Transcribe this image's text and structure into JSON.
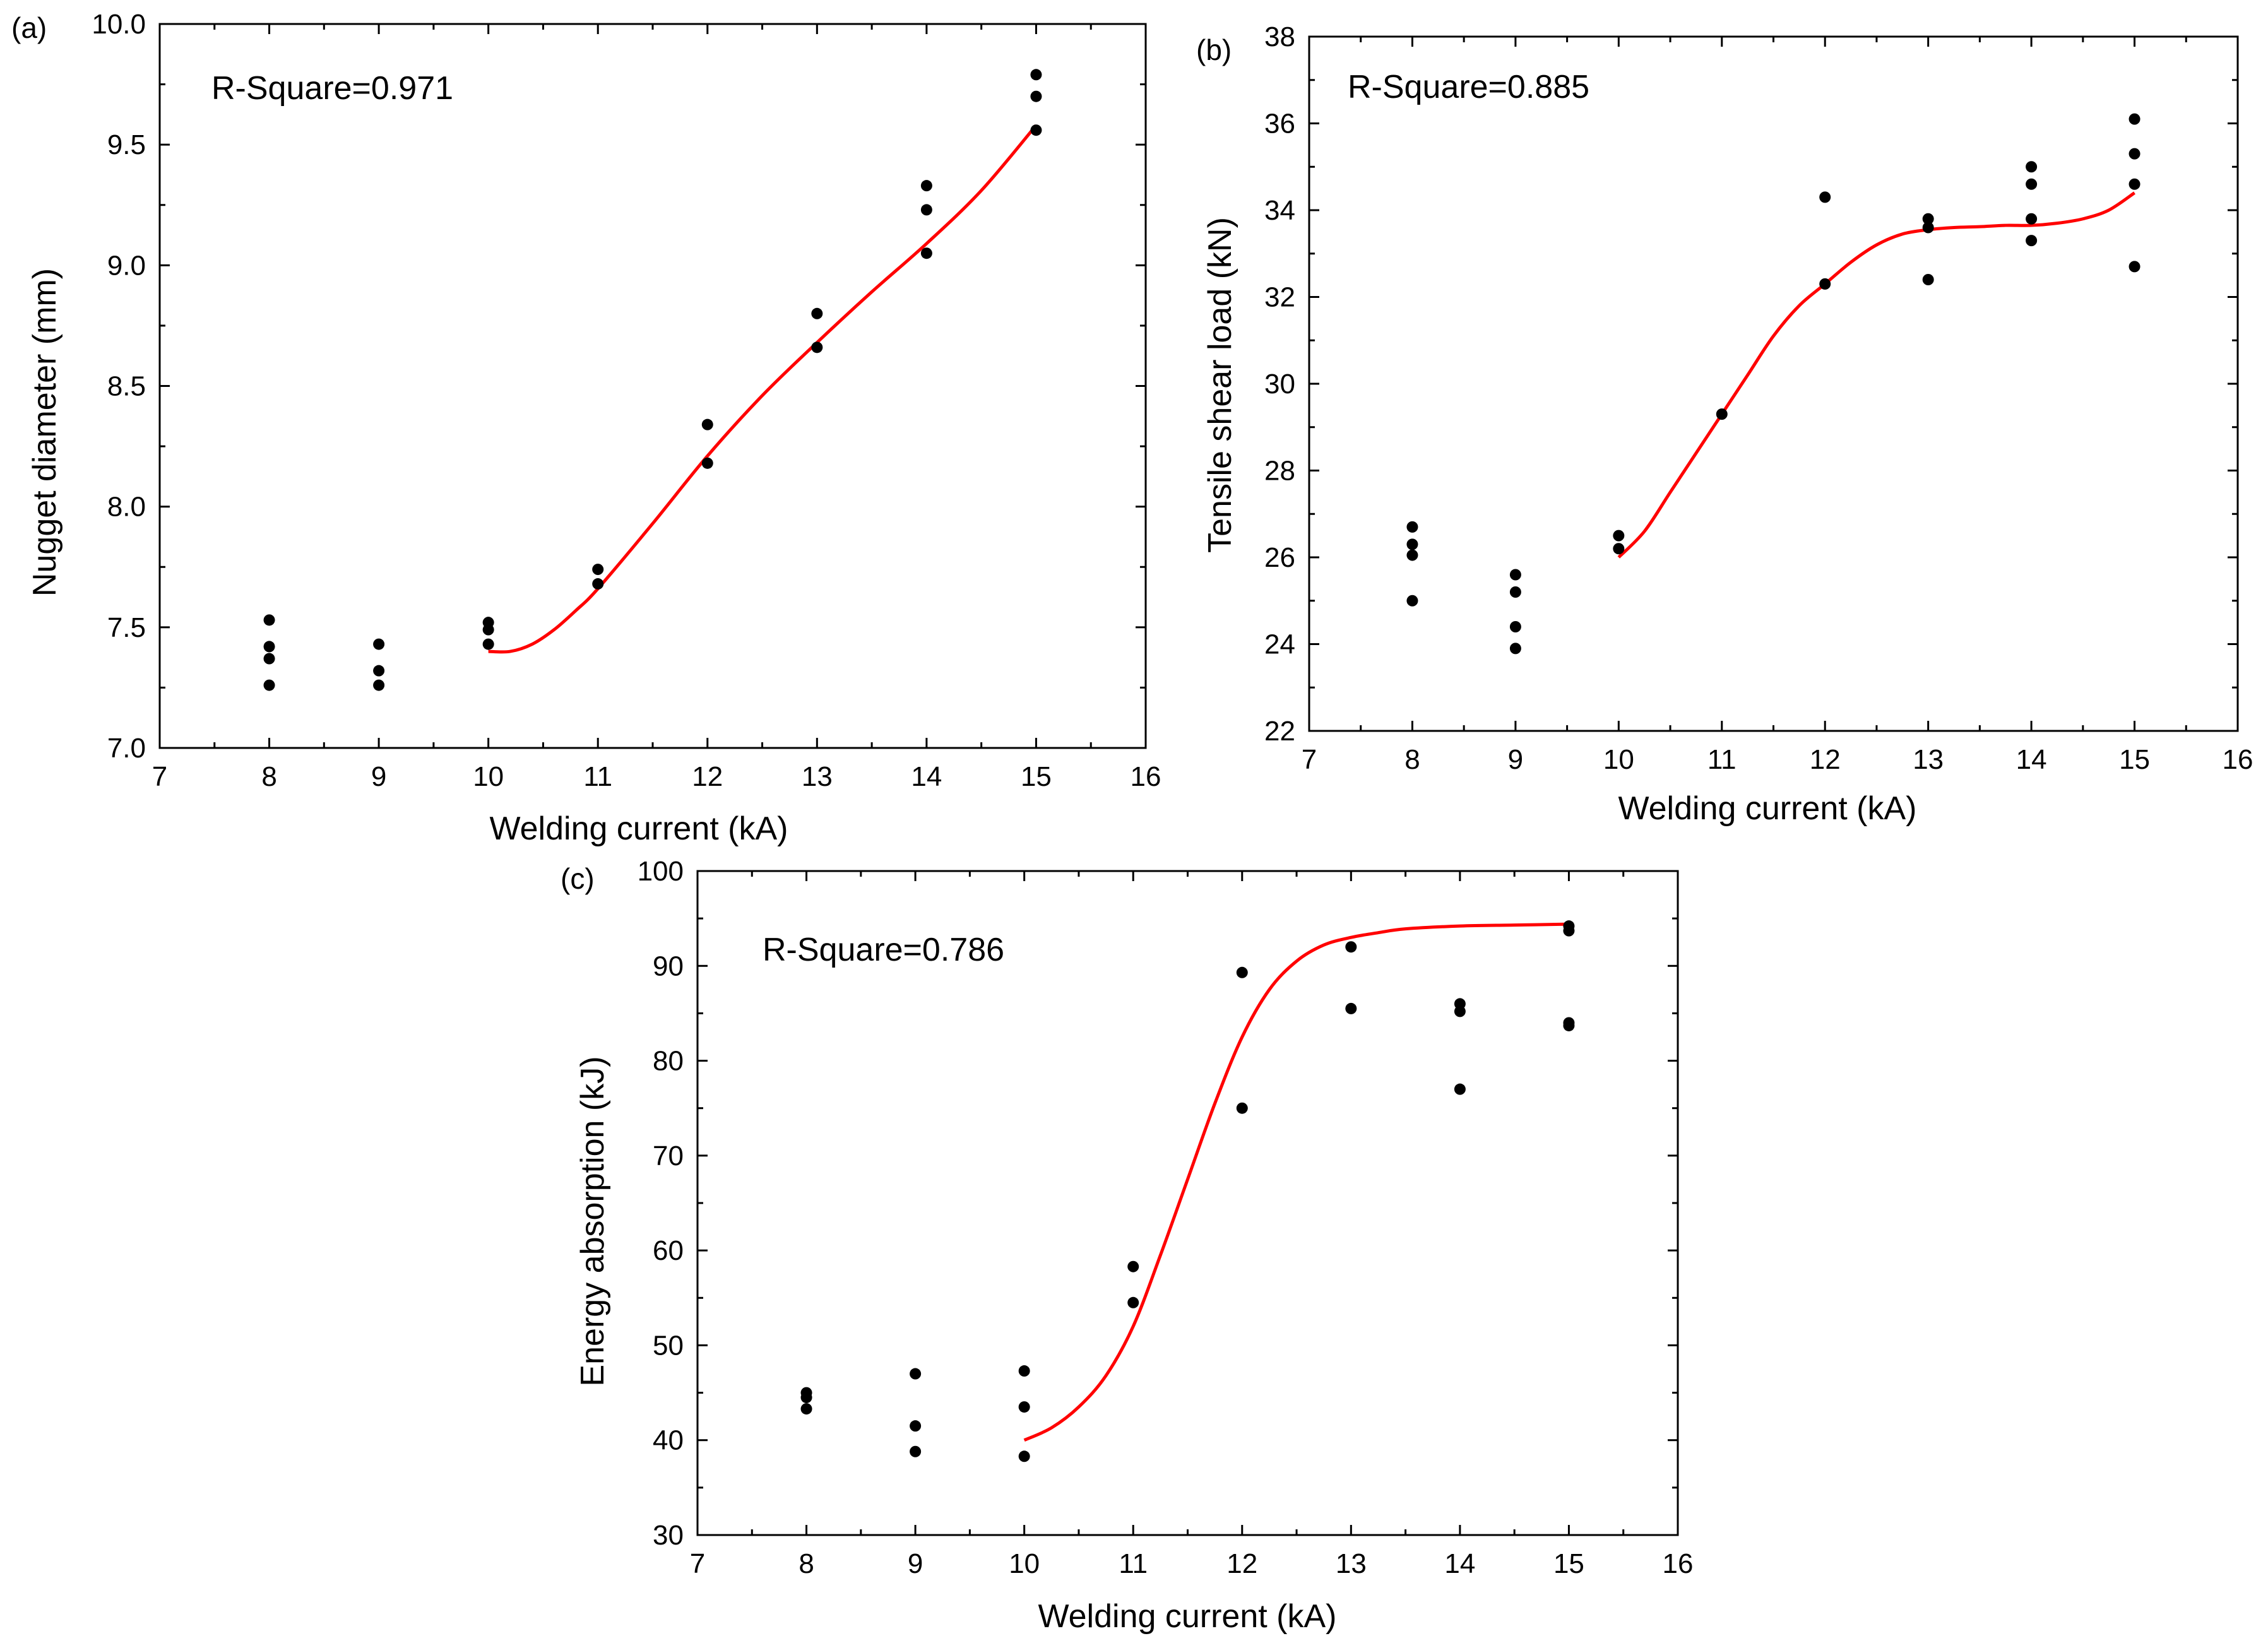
{
  "colors": {
    "points": "#000000",
    "fit": "#ff0000",
    "axes": "#000000",
    "background": "#ffffff"
  },
  "chart_data": [
    {
      "type": "scatter",
      "panel_label": "(a)",
      "annotation": "R-Square=0.971",
      "xlabel": "Welding current (kA)",
      "ylabel": "Nugget diameter (mm)",
      "xlim": [
        7,
        16
      ],
      "ylim": [
        7.0,
        10.0
      ],
      "xticks": [
        "7",
        "8",
        "9",
        "10",
        "11",
        "12",
        "13",
        "14",
        "15",
        "16"
      ],
      "yticks": [
        "7.0",
        "7.5",
        "8.0",
        "8.5",
        "9.0",
        "9.5",
        "10.0"
      ],
      "points": [
        [
          8,
          7.53
        ],
        [
          8,
          7.42
        ],
        [
          8,
          7.37
        ],
        [
          8,
          7.26
        ],
        [
          9,
          7.43
        ],
        [
          9,
          7.32
        ],
        [
          9,
          7.26
        ],
        [
          10,
          7.52
        ],
        [
          10,
          7.49
        ],
        [
          10,
          7.43
        ],
        [
          11,
          7.74
        ],
        [
          11,
          7.68
        ],
        [
          12,
          8.34
        ],
        [
          12,
          8.18
        ],
        [
          13,
          8.8
        ],
        [
          13,
          8.66
        ],
        [
          14,
          9.33
        ],
        [
          14,
          9.23
        ],
        [
          14,
          9.05
        ],
        [
          15,
          9.79
        ],
        [
          15,
          9.7
        ],
        [
          15,
          9.56
        ]
      ],
      "fit_curve": [
        [
          10.0,
          7.4
        ],
        [
          10.2,
          7.4
        ],
        [
          10.4,
          7.43
        ],
        [
          10.6,
          7.49
        ],
        [
          10.8,
          7.57
        ],
        [
          11.0,
          7.66
        ],
        [
          11.5,
          7.93
        ],
        [
          12.0,
          8.21
        ],
        [
          12.5,
          8.46
        ],
        [
          13.0,
          8.68
        ],
        [
          13.5,
          8.89
        ],
        [
          14.0,
          9.09
        ],
        [
          14.5,
          9.31
        ],
        [
          15.0,
          9.58
        ]
      ]
    },
    {
      "type": "scatter",
      "panel_label": "(b)",
      "annotation": "R-Square=0.885",
      "xlabel": "Welding current (kA)",
      "ylabel": "Tensile shear load (kN)",
      "xlim": [
        7,
        16
      ],
      "ylim": [
        22,
        38
      ],
      "xticks": [
        "7",
        "8",
        "9",
        "10",
        "11",
        "12",
        "13",
        "14",
        "15",
        "16"
      ],
      "yticks": [
        "22",
        "24",
        "26",
        "28",
        "30",
        "32",
        "34",
        "36",
        "38"
      ],
      "points": [
        [
          8,
          26.7
        ],
        [
          8,
          26.3
        ],
        [
          8,
          26.05
        ],
        [
          8,
          25.0
        ],
        [
          9,
          25.6
        ],
        [
          9,
          25.2
        ],
        [
          9,
          24.4
        ],
        [
          9,
          23.9
        ],
        [
          10,
          26.5
        ],
        [
          10,
          26.2
        ],
        [
          11,
          29.3
        ],
        [
          12,
          34.3
        ],
        [
          12,
          32.3
        ],
        [
          13,
          33.8
        ],
        [
          13,
          33.6
        ],
        [
          13,
          32.4
        ],
        [
          14,
          35.0
        ],
        [
          14,
          34.6
        ],
        [
          14,
          33.8
        ],
        [
          14,
          33.3
        ],
        [
          15,
          36.1
        ],
        [
          15,
          35.3
        ],
        [
          15,
          34.6
        ],
        [
          15,
          32.7
        ]
      ],
      "fit_curve": [
        [
          10.0,
          26.0
        ],
        [
          10.25,
          26.6
        ],
        [
          10.5,
          27.5
        ],
        [
          10.75,
          28.4
        ],
        [
          11.0,
          29.3
        ],
        [
          11.25,
          30.2
        ],
        [
          11.5,
          31.1
        ],
        [
          11.75,
          31.8
        ],
        [
          12.0,
          32.3
        ],
        [
          12.25,
          32.8
        ],
        [
          12.5,
          33.2
        ],
        [
          12.75,
          33.45
        ],
        [
          13.0,
          33.55
        ],
        [
          13.25,
          33.6
        ],
        [
          13.5,
          33.62
        ],
        [
          13.75,
          33.65
        ],
        [
          14.0,
          33.65
        ],
        [
          14.25,
          33.7
        ],
        [
          14.5,
          33.8
        ],
        [
          14.75,
          34.0
        ],
        [
          15.0,
          34.4
        ]
      ]
    },
    {
      "type": "scatter",
      "panel_label": "(c)",
      "annotation": "R-Square=0.786",
      "xlabel": "Welding current (kA)",
      "ylabel": "Energy absorption (kJ)",
      "xlim": [
        7,
        16
      ],
      "ylim": [
        30,
        100
      ],
      "xticks": [
        "7",
        "8",
        "9",
        "10",
        "11",
        "12",
        "13",
        "14",
        "15",
        "16"
      ],
      "yticks": [
        "30",
        "40",
        "50",
        "60",
        "70",
        "80",
        "90",
        "100"
      ],
      "points": [
        [
          8,
          45.0
        ],
        [
          8,
          44.5
        ],
        [
          8,
          43.3
        ],
        [
          9,
          47.0
        ],
        [
          9,
          41.5
        ],
        [
          9,
          38.8
        ],
        [
          10,
          47.3
        ],
        [
          10,
          43.5
        ],
        [
          10,
          38.3
        ],
        [
          11,
          58.3
        ],
        [
          11,
          54.5
        ],
        [
          12,
          89.3
        ],
        [
          12,
          75.0
        ],
        [
          13,
          92.0
        ],
        [
          13,
          85.5
        ],
        [
          14,
          86.0
        ],
        [
          14,
          85.2
        ],
        [
          14,
          77.0
        ],
        [
          15,
          94.2
        ],
        [
          15,
          93.7
        ],
        [
          15,
          84.0
        ],
        [
          15,
          83.7
        ]
      ],
      "fit_curve": [
        [
          10.0,
          40.0
        ],
        [
          10.25,
          41.3
        ],
        [
          10.5,
          43.5
        ],
        [
          10.75,
          46.8
        ],
        [
          11.0,
          52.0
        ],
        [
          11.25,
          59.5
        ],
        [
          11.5,
          67.5
        ],
        [
          11.75,
          75.5
        ],
        [
          12.0,
          82.5
        ],
        [
          12.25,
          87.5
        ],
        [
          12.5,
          90.5
        ],
        [
          12.75,
          92.2
        ],
        [
          13.0,
          93.0
        ],
        [
          13.25,
          93.5
        ],
        [
          13.5,
          93.9
        ],
        [
          14.0,
          94.2
        ],
        [
          14.5,
          94.3
        ],
        [
          15.0,
          94.4
        ]
      ]
    }
  ]
}
